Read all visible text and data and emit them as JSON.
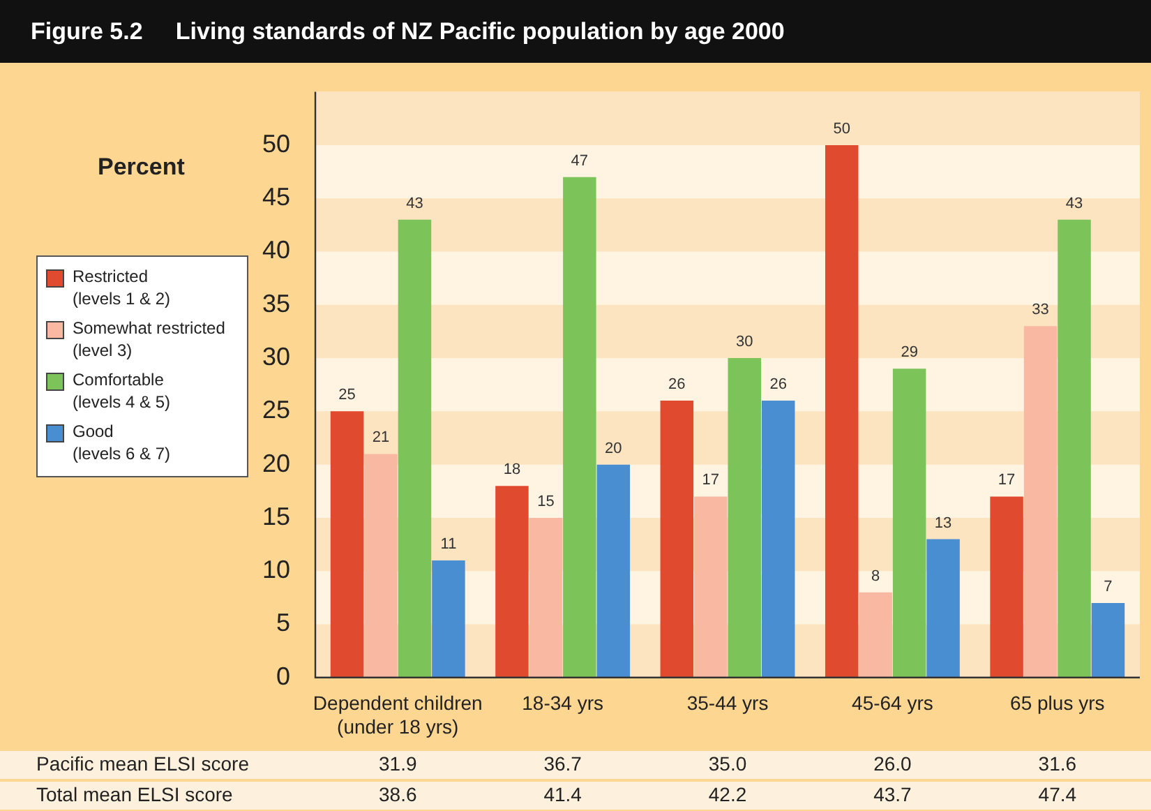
{
  "chart_data": {
    "type": "bar",
    "title": "Figure 5.2     Living standards of NZ Pacific population by age 2000",
    "ylabel": "Percent",
    "categories": [
      "Dependent children\n(under 18 yrs)",
      "18-34 yrs",
      "35-44 yrs",
      "45-64 yrs",
      "65 plus yrs"
    ],
    "series": [
      {
        "name": "Restricted\n(levels 1 & 2)",
        "color": "#e04b30",
        "values": [
          25,
          18,
          26,
          50,
          17
        ]
      },
      {
        "name": "Somewhat restricted\n(level 3)",
        "color": "#f8b8a2",
        "values": [
          21,
          15,
          17,
          8,
          33
        ]
      },
      {
        "name": "Comfortable\n(levels 4 & 5)",
        "color": "#7cc35a",
        "values": [
          43,
          47,
          30,
          29,
          43
        ]
      },
      {
        "name": "Good\n(levels 6 & 7)",
        "color": "#4a8ed2",
        "values": [
          11,
          20,
          26,
          13,
          7
        ]
      }
    ],
    "ylim": [
      0,
      55
    ],
    "yticks": [
      0,
      5,
      10,
      15,
      20,
      25,
      30,
      35,
      40,
      45,
      50
    ],
    "bands": [
      {
        "axis": "y",
        "from": 0,
        "to": 5,
        "color": "#fde4c0"
      },
      {
        "axis": "y",
        "from": 10,
        "to": 15,
        "color": "#fde4c0"
      },
      {
        "axis": "y",
        "from": 20,
        "to": 25,
        "color": "#fde4c0"
      },
      {
        "axis": "y",
        "from": 30,
        "to": 35,
        "color": "#fde4c0"
      },
      {
        "axis": "y",
        "from": 40,
        "to": 45,
        "color": "#fde4c0"
      },
      {
        "axis": "y",
        "from": 50,
        "to": 55,
        "color": "#fde4c0"
      }
    ],
    "legend": "left",
    "data_labels": true,
    "annotations": [
      "Pacific mean ELSI score",
      "31.9",
      "36.7",
      "35.0",
      "26.0",
      "31.6",
      "Total mean ELSI score",
      "38.6",
      "41.4",
      "42.2",
      "43.7",
      "47.4"
    ]
  }
}
